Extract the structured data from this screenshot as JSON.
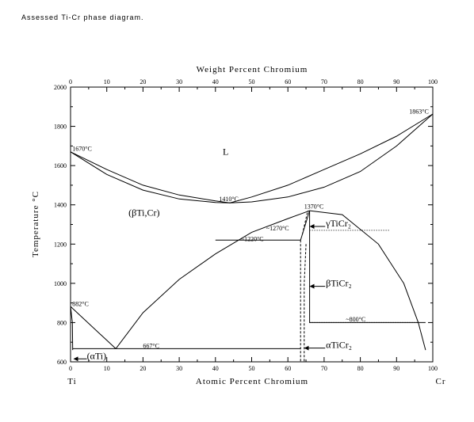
{
  "caption": "Assessed Ti-Cr phase diagram.",
  "chart_data": {
    "type": "line",
    "title": "",
    "x_bottom_label": "Atomic Percent Chromium",
    "x_top_label": "Weight Percent Chromium",
    "y_label": "Temperature °C",
    "x_bottom_ticks": [
      "0",
      "10",
      "20",
      "30",
      "40",
      "50",
      "60",
      "70",
      "80",
      "90",
      "100"
    ],
    "x_top_ticks": [
      "0",
      "10",
      "20",
      "30",
      "40",
      "50",
      "60",
      "70",
      "80",
      "90",
      "100"
    ],
    "y_ticks": [
      "600",
      "800",
      "1000",
      "1200",
      "1400",
      "1600",
      "1800",
      "2000"
    ],
    "xlim": [
      0,
      100
    ],
    "ylim": [
      600,
      2000
    ],
    "left_element": "Ti",
    "right_element": "Cr",
    "series": [
      {
        "style": "solid",
        "points": [
          [
            0,
            1670
          ],
          [
            10,
            1580
          ],
          [
            20,
            1500
          ],
          [
            30,
            1450
          ],
          [
            40,
            1420
          ],
          [
            44,
            1410
          ],
          [
            50,
            1440
          ],
          [
            60,
            1500
          ],
          [
            70,
            1580
          ],
          [
            80,
            1660
          ],
          [
            90,
            1750
          ],
          [
            100,
            1863
          ]
        ]
      },
      {
        "style": "solid",
        "points": [
          [
            0,
            1670
          ],
          [
            10,
            1555
          ],
          [
            20,
            1475
          ],
          [
            30,
            1430
          ],
          [
            40,
            1412
          ],
          [
            44,
            1410
          ],
          [
            50,
            1415
          ],
          [
            60,
            1440
          ],
          [
            70,
            1490
          ],
          [
            80,
            1570
          ],
          [
            90,
            1700
          ],
          [
            100,
            1863
          ]
        ]
      },
      {
        "style": "solid",
        "points": [
          [
            12.5,
            667
          ],
          [
            20,
            850
          ],
          [
            30,
            1020
          ],
          [
            40,
            1150
          ],
          [
            50,
            1260
          ],
          [
            60,
            1330
          ],
          [
            66,
            1370
          ],
          [
            75,
            1350
          ],
          [
            85,
            1200
          ],
          [
            92,
            1000
          ],
          [
            96,
            800
          ],
          [
            98,
            660
          ]
        ]
      },
      {
        "style": "solid",
        "points": [
          [
            0,
            882
          ],
          [
            12.5,
            667
          ]
        ]
      },
      {
        "style": "solid",
        "points": [
          [
            0,
            882
          ],
          [
            0.5,
            800
          ],
          [
            0.6,
            660
          ]
        ]
      },
      {
        "style": "solid",
        "points": [
          [
            0.6,
            667
          ],
          [
            63.5,
            667
          ]
        ]
      },
      {
        "style": "solid",
        "points": [
          [
            40,
            1220
          ],
          [
            63.5,
            1220
          ]
        ]
      },
      {
        "style": "solid",
        "points": [
          [
            66,
            1370
          ],
          [
            66,
            800
          ],
          [
            98,
            800
          ]
        ]
      },
      {
        "style": "solid",
        "points": [
          [
            63.5,
            1220
          ],
          [
            66,
            1370
          ]
        ]
      },
      {
        "style": "dashed",
        "points": [
          [
            63.5,
            1220
          ],
          [
            63.5,
            600
          ]
        ]
      },
      {
        "style": "dashed",
        "points": [
          [
            65,
            1200
          ],
          [
            64.5,
            1000
          ],
          [
            64.5,
            600
          ]
        ]
      },
      {
        "style": "dashed",
        "points": [
          [
            64,
            1250
          ],
          [
            65.5,
            1370
          ]
        ]
      },
      {
        "style": "dotted",
        "points": [
          [
            66,
            1270
          ],
          [
            88,
            1270
          ]
        ]
      },
      {
        "style": "dotted",
        "points": [
          [
            66,
            800
          ],
          [
            96,
            800
          ]
        ]
      }
    ],
    "annotations": [
      {
        "text": "1670°C",
        "x": 0.5,
        "y": 1675
      },
      {
        "text": "1863°C",
        "x": 93.5,
        "y": 1865
      },
      {
        "text": "1410°C",
        "x": 41,
        "y": 1420
      },
      {
        "text": "1370°C",
        "x": 64.5,
        "y": 1380
      },
      {
        "text": "~1270°C",
        "x": 54,
        "y": 1270
      },
      {
        "text": "~1220°C",
        "x": 47,
        "y": 1215
      },
      {
        "text": "882°C",
        "x": 0.5,
        "y": 885
      },
      {
        "text": "667°C",
        "x": 20,
        "y": 670
      },
      {
        "text": "~800°C",
        "x": 76,
        "y": 805
      },
      {
        "text": "(αTi)",
        "x": 4.5,
        "y": 615
      },
      {
        "text": "L",
        "x": 42,
        "y": 1655
      },
      {
        "text": "(βTi,Cr)",
        "x": 16,
        "y": 1345
      },
      {
        "text": "γTiCr₂",
        "x": 70.5,
        "y": 1290
      },
      {
        "text": "βTiCr₂",
        "x": 70.5,
        "y": 985
      },
      {
        "text": "αTiCr₂",
        "x": 70.5,
        "y": 670
      }
    ]
  }
}
